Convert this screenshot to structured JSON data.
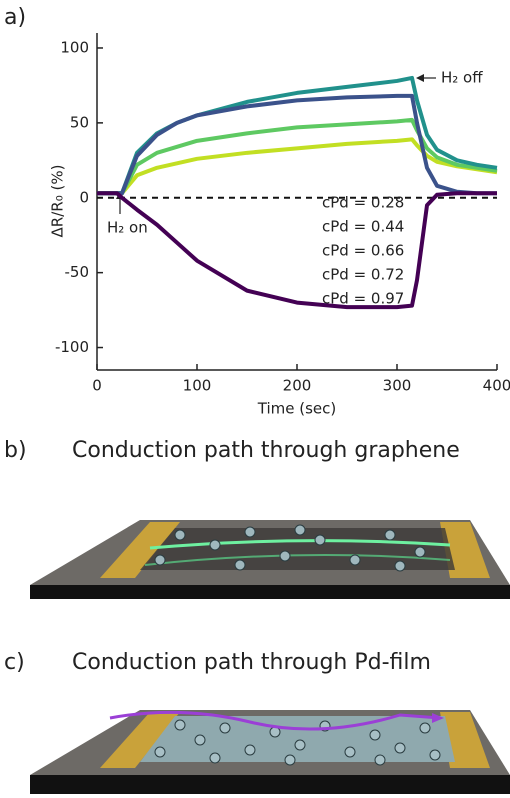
{
  "chart_data": {
    "type": "line",
    "panel_label": "a)",
    "xlabel": "Time (sec)",
    "ylabel": "ΔR/R₀ (%)",
    "x": [
      0,
      20,
      25,
      40,
      60,
      80,
      100,
      150,
      200,
      250,
      300,
      315,
      320,
      330,
      340,
      360,
      380,
      400
    ],
    "series": [
      {
        "name": "cPd = 0.28",
        "color": "#c2df23",
        "values": [
          3,
          3,
          3,
          15,
          20,
          23,
          26,
          30,
          33,
          36,
          38,
          39,
          35,
          28,
          24,
          21,
          19,
          17
        ]
      },
      {
        "name": "cPd = 0.44",
        "color": "#5ec962",
        "values": [
          3,
          3,
          3,
          22,
          30,
          34,
          38,
          43,
          47,
          49,
          51,
          52,
          45,
          33,
          27,
          22,
          20,
          18
        ]
      },
      {
        "name": "cPd = 0.66",
        "color": "#21918c",
        "values": [
          3,
          3,
          3,
          30,
          43,
          50,
          55,
          64,
          70,
          74,
          78,
          80,
          65,
          42,
          32,
          25,
          22,
          20
        ]
      },
      {
        "name": "cPd = 0.72",
        "color": "#3b528b",
        "values": [
          3,
          3,
          3,
          28,
          42,
          50,
          55,
          61,
          65,
          67,
          68,
          68,
          50,
          20,
          8,
          4,
          3,
          3
        ]
      },
      {
        "name": "cPd = 0.97",
        "color": "#440154",
        "values": [
          3,
          3,
          0,
          -8,
          -18,
          -30,
          -42,
          -62,
          -70,
          -73,
          -73,
          -72,
          -55,
          -5,
          2,
          3,
          3,
          3
        ]
      }
    ],
    "xlim": [
      0,
      400
    ],
    "xticks": [
      0,
      100,
      200,
      300,
      400
    ],
    "ylim": [
      -115,
      110
    ],
    "yticks": [
      -100,
      -50,
      0,
      50,
      100
    ],
    "annotations": [
      "H₂ on",
      "H₂ off"
    ]
  },
  "panels": [
    {
      "label": "b)",
      "title": "Conduction path through graphene"
    },
    {
      "label": "c)",
      "title": "Conduction path through Pd-film"
    }
  ]
}
